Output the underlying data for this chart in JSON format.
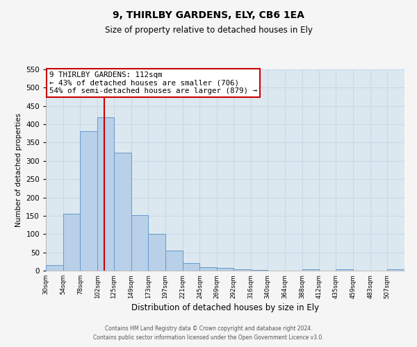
{
  "title": "9, THIRLBY GARDENS, ELY, CB6 1EA",
  "subtitle": "Size of property relative to detached houses in Ely",
  "xlabel": "Distribution of detached houses by size in Ely",
  "ylabel": "Number of detached properties",
  "categories": [
    "30sqm",
    "54sqm",
    "78sqm",
    "102sqm",
    "125sqm",
    "149sqm",
    "173sqm",
    "197sqm",
    "221sqm",
    "245sqm",
    "269sqm",
    "292sqm",
    "316sqm",
    "340sqm",
    "364sqm",
    "388sqm",
    "412sqm",
    "435sqm",
    "459sqm",
    "483sqm",
    "507sqm"
  ],
  "bin_edges": [
    30,
    54,
    78,
    102,
    125,
    149,
    173,
    197,
    221,
    245,
    269,
    292,
    316,
    340,
    364,
    388,
    412,
    435,
    459,
    483,
    507,
    531
  ],
  "values": [
    15,
    155,
    382,
    420,
    322,
    152,
    100,
    55,
    20,
    10,
    8,
    3,
    2,
    0,
    0,
    4,
    0,
    3,
    0,
    0,
    3
  ],
  "bar_color": "#b8d0e8",
  "bar_edge_color": "#6699cc",
  "vline_x": 112,
  "vline_color": "#cc0000",
  "annotation_title": "9 THIRLBY GARDENS: 112sqm",
  "annotation_line1": "← 43% of detached houses are smaller (706)",
  "annotation_line2": "54% of semi-detached houses are larger (879) →",
  "annotation_box_color": "#ffffff",
  "annotation_box_edge_color": "#cc0000",
  "ylim": [
    0,
    550
  ],
  "yticks": [
    0,
    50,
    100,
    150,
    200,
    250,
    300,
    350,
    400,
    450,
    500,
    550
  ],
  "grid_color": "#c8d8e8",
  "background_color": "#dce8f0",
  "footer1": "Contains HM Land Registry data © Crown copyright and database right 2024.",
  "footer2": "Contains public sector information licensed under the Open Government Licence v3.0."
}
